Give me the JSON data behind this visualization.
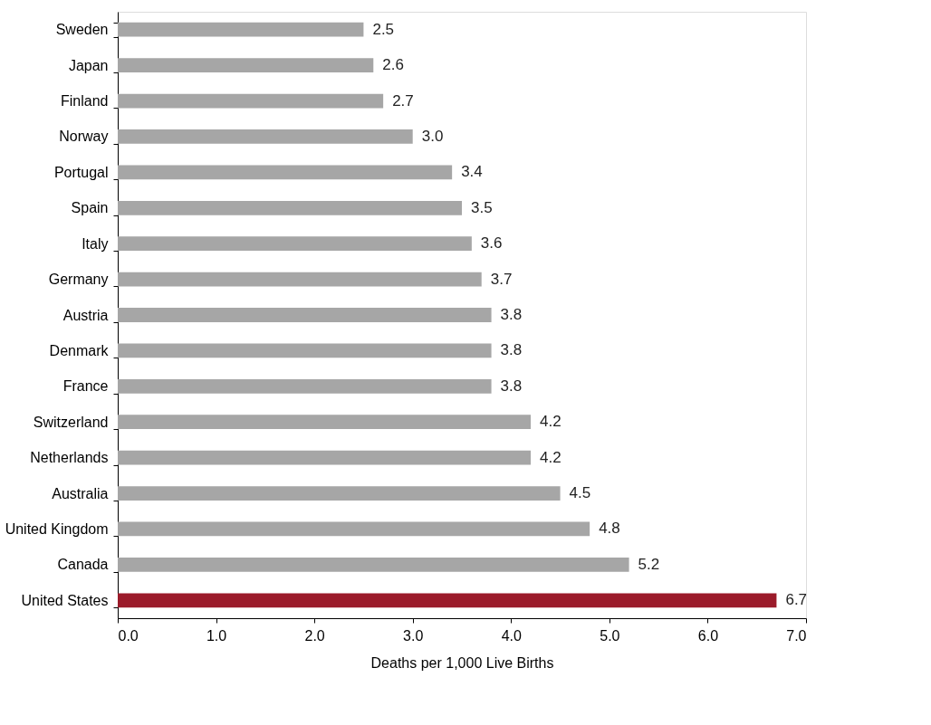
{
  "chart_data": {
    "type": "bar",
    "orientation": "horizontal",
    "xlabel": "Deaths per 1,000 Live Births",
    "categories": [
      "Sweden",
      "Japan",
      "Finland",
      "Norway",
      "Portugal",
      "Spain",
      "Italy",
      "Germany",
      "Austria",
      "Denmark",
      "France",
      "Switzerland",
      "Netherlands",
      "Australia",
      "United Kingdom",
      "Canada",
      "United States"
    ],
    "values": [
      2.5,
      2.6,
      2.7,
      3.0,
      3.4,
      3.5,
      3.6,
      3.7,
      3.8,
      3.8,
      3.8,
      4.2,
      4.2,
      4.5,
      4.8,
      5.2,
      6.7
    ],
    "value_labels": [
      "2.5",
      "2.6",
      "2.7",
      "3.0",
      "3.4",
      "3.5",
      "3.6",
      "3.7",
      "3.8",
      "3.8",
      "3.8",
      "4.2",
      "4.2",
      "4.5",
      "4.8",
      "5.2",
      "6.7"
    ],
    "colors": [
      "#a6a6a6",
      "#a6a6a6",
      "#a6a6a6",
      "#a6a6a6",
      "#a6a6a6",
      "#a6a6a6",
      "#a6a6a6",
      "#a6a6a6",
      "#a6a6a6",
      "#a6a6a6",
      "#a6a6a6",
      "#a6a6a6",
      "#a6a6a6",
      "#a6a6a6",
      "#a6a6a6",
      "#a6a6a6",
      "#9b1b2a"
    ],
    "xlim": [
      0,
      7
    ],
    "xticks": [
      {
        "value": 0,
        "label": "0.0"
      },
      {
        "value": 1,
        "label": "1.0"
      },
      {
        "value": 2,
        "label": "2.0"
      },
      {
        "value": 3,
        "label": "3.0"
      },
      {
        "value": 4,
        "label": "4.0"
      },
      {
        "value": 5,
        "label": "5.0"
      },
      {
        "value": 6,
        "label": "6.0"
      },
      {
        "value": 7,
        "label": "7.0"
      }
    ],
    "grid": false
  }
}
